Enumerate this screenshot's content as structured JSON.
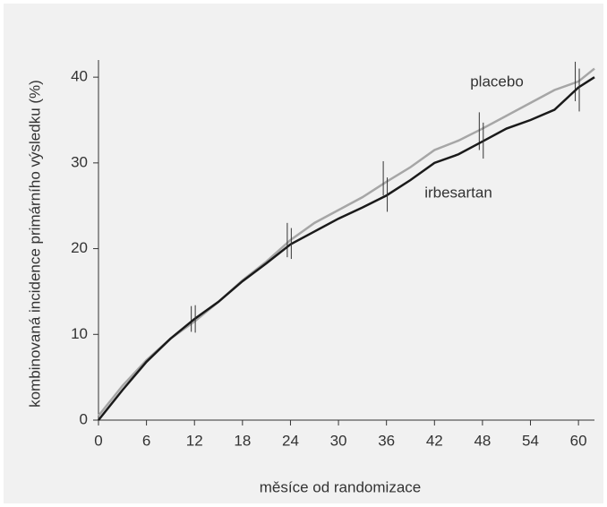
{
  "chart_data": {
    "type": "line",
    "xlabel": "měsíce od randomizace",
    "ylabel": "kombinovaná incidence primárního výsledku (%)",
    "xlim": [
      0,
      62
    ],
    "ylim": [
      0,
      42
    ],
    "xticks": [
      0,
      6,
      12,
      18,
      24,
      30,
      36,
      42,
      48,
      54,
      60
    ],
    "yticks": [
      0,
      10,
      20,
      30,
      40
    ],
    "series": [
      {
        "name": "placebo",
        "color": "#a6a6a6",
        "x": [
          0,
          3,
          6,
          9,
          12,
          15,
          18,
          21,
          24,
          27,
          30,
          33,
          36,
          39,
          42,
          45,
          48,
          51,
          54,
          57,
          60,
          62
        ],
        "values": [
          0.5,
          4,
          7,
          9.5,
          11.5,
          13.8,
          16.3,
          18.5,
          21,
          23,
          24.5,
          26,
          27.8,
          29.5,
          31.5,
          32.6,
          34,
          35.5,
          37,
          38.5,
          39.5,
          41
        ],
        "ci_x": [
          11.6,
          23.6,
          35.6,
          47.6,
          59.6
        ],
        "ci_values": [
          11.8,
          21,
          28.2,
          33.7,
          39.5
        ],
        "ci_errors": [
          1.5,
          2,
          2,
          2.2,
          2.3
        ]
      },
      {
        "name": "irbesartan",
        "color": "#1a1a1a",
        "x": [
          0,
          3,
          6,
          9,
          12,
          15,
          18,
          21,
          24,
          27,
          30,
          33,
          36,
          39,
          42,
          45,
          48,
          51,
          54,
          57,
          60,
          62
        ],
        "values": [
          0,
          3.5,
          6.8,
          9.5,
          11.8,
          13.8,
          16.2,
          18.3,
          20.5,
          22,
          23.5,
          24.8,
          26.2,
          28,
          30,
          31,
          32.5,
          34,
          35,
          36.2,
          38.8,
          40
        ],
        "ci_x": [
          12.1,
          24.1,
          36.1,
          48.1,
          60.1
        ],
        "ci_values": [
          11.8,
          20.6,
          26.3,
          32.6,
          38.5
        ],
        "ci_errors": [
          1.6,
          1.8,
          2,
          2.1,
          2.5
        ]
      }
    ]
  }
}
